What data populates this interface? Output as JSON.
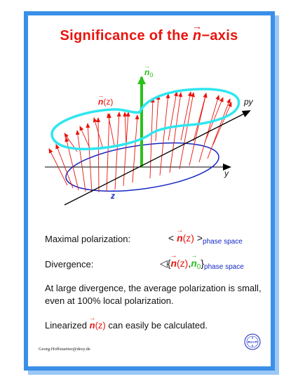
{
  "title": {
    "prefix": "Significance of the ",
    "vector": "n",
    "suffix": "−axis"
  },
  "diagram": {
    "axis_n0": {
      "vec": "n",
      "sub": "0"
    },
    "label_n_of_z": {
      "vec": "n",
      "arg": "(z)",
      "arg_vec": "z"
    },
    "label_py": "py",
    "label_y": "y",
    "label_z": "z"
  },
  "maximal_polarization": {
    "label": "Maximal polarization:",
    "formula_open": "<",
    "formula_vec": "n",
    "formula_arg": "(z)",
    "formula_close": ">",
    "subscript": "phase space"
  },
  "divergence": {
    "label": "Divergence:",
    "formula_open": "◁{",
    "n_vec": "n",
    "n_arg": "(z)",
    "comma": ",",
    "n0_vec": "n",
    "n0_sub": "0",
    "formula_close": "}",
    "subscript": "phase space"
  },
  "statement": "At large divergence, the average polarization is small, even at 100% local polarization.",
  "linearized": {
    "prefix": "Linearized ",
    "vec": "n",
    "arg": "(z)",
    "suffix": " can easily be calculated."
  },
  "footer": {
    "email": "Georg.Hoffstaetter@desy.de"
  },
  "logo": {
    "text": "DESY"
  },
  "colors": {
    "frame": "#3a8fe8",
    "title": "#e8140d",
    "spin_arrow": "#e8140d",
    "n0_arrow": "#2bc11b",
    "cyan_curve": "#2ee6ef",
    "blue_ellipse": "#1427c4"
  }
}
